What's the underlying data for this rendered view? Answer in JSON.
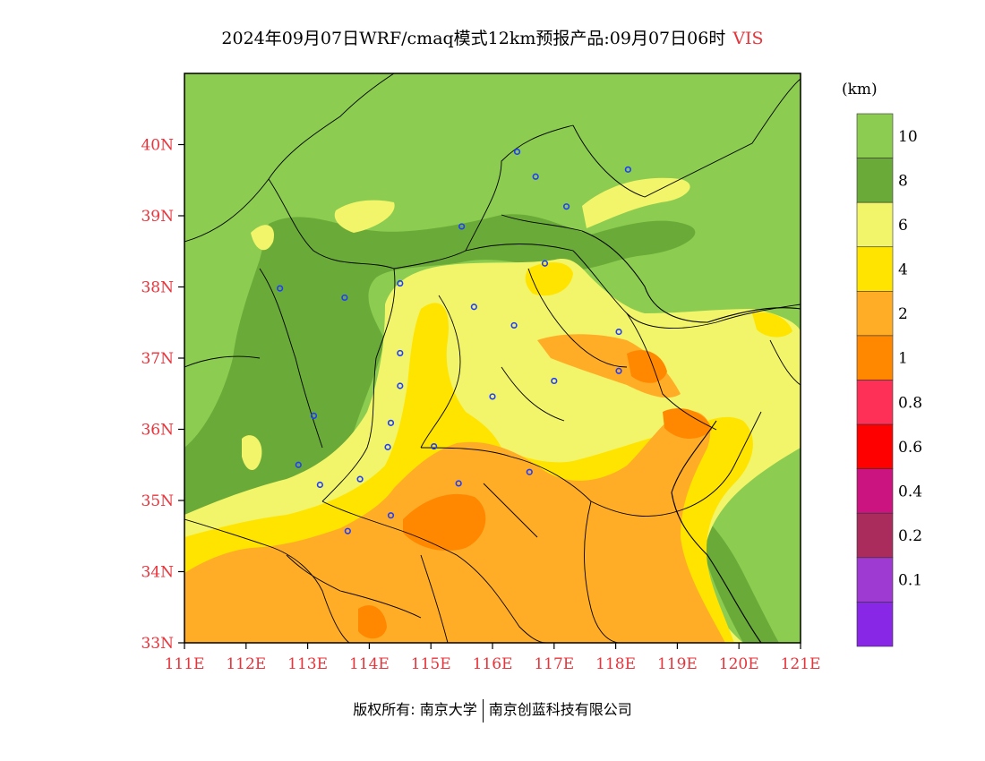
{
  "title": {
    "main": "2024年09月07日WRF/cmaq模式12km预报产品:09月07日06时",
    "variable": "VIS"
  },
  "colors": {
    "label_red": "#e8333a"
  },
  "map": {
    "lat_labels": [
      "40N",
      "39N",
      "38N",
      "37N",
      "36N",
      "35N",
      "34N",
      "33N"
    ],
    "lon_labels": [
      "111E",
      "112E",
      "113E",
      "114E",
      "115E",
      "116E",
      "117E",
      "118E",
      "119E",
      "120E",
      "121E"
    ],
    "stations": [
      {
        "lon": 116.4,
        "lat": 39.9
      },
      {
        "lon": 116.7,
        "lat": 39.55
      },
      {
        "lon": 118.2,
        "lat": 39.65
      },
      {
        "lon": 117.2,
        "lat": 39.13
      },
      {
        "lon": 115.5,
        "lat": 38.85
      },
      {
        "lon": 116.85,
        "lat": 38.33
      },
      {
        "lon": 112.55,
        "lat": 37.98
      },
      {
        "lon": 113.6,
        "lat": 37.85
      },
      {
        "lon": 114.5,
        "lat": 38.05
      },
      {
        "lon": 115.7,
        "lat": 37.72
      },
      {
        "lon": 116.35,
        "lat": 37.46
      },
      {
        "lon": 118.05,
        "lat": 37.37
      },
      {
        "lon": 118.05,
        "lat": 36.82
      },
      {
        "lon": 114.5,
        "lat": 37.07
      },
      {
        "lon": 117.0,
        "lat": 36.68
      },
      {
        "lon": 114.5,
        "lat": 36.61
      },
      {
        "lon": 116.0,
        "lat": 36.46
      },
      {
        "lon": 113.1,
        "lat": 36.19
      },
      {
        "lon": 114.35,
        "lat": 36.09
      },
      {
        "lon": 114.3,
        "lat": 35.75
      },
      {
        "lon": 115.05,
        "lat": 35.76
      },
      {
        "lon": 112.85,
        "lat": 35.5
      },
      {
        "lon": 116.6,
        "lat": 35.4
      },
      {
        "lon": 113.85,
        "lat": 35.3
      },
      {
        "lon": 113.2,
        "lat": 35.22
      },
      {
        "lon": 115.45,
        "lat": 35.24
      },
      {
        "lon": 114.35,
        "lat": 34.79
      },
      {
        "lon": 113.65,
        "lat": 34.57
      }
    ]
  },
  "legend": {
    "unit": "(km)",
    "labels": [
      "10",
      "8",
      "6",
      "4",
      "2",
      "1",
      "0.8",
      "0.6",
      "0.4",
      "0.2",
      "0.1"
    ],
    "colors": [
      "#8ccc50",
      "#6aaa38",
      "#f2f56a",
      "#ffe400",
      "#ffad26",
      "#ff8800",
      "#ff3058",
      "#ff0000",
      "#cc1480",
      "#aa2c5c",
      "#9e3ad2",
      "#8828e6"
    ]
  },
  "footer": {
    "copyright": "版权所有: 南京大学",
    "company": "南京创蓝科技有限公司"
  }
}
